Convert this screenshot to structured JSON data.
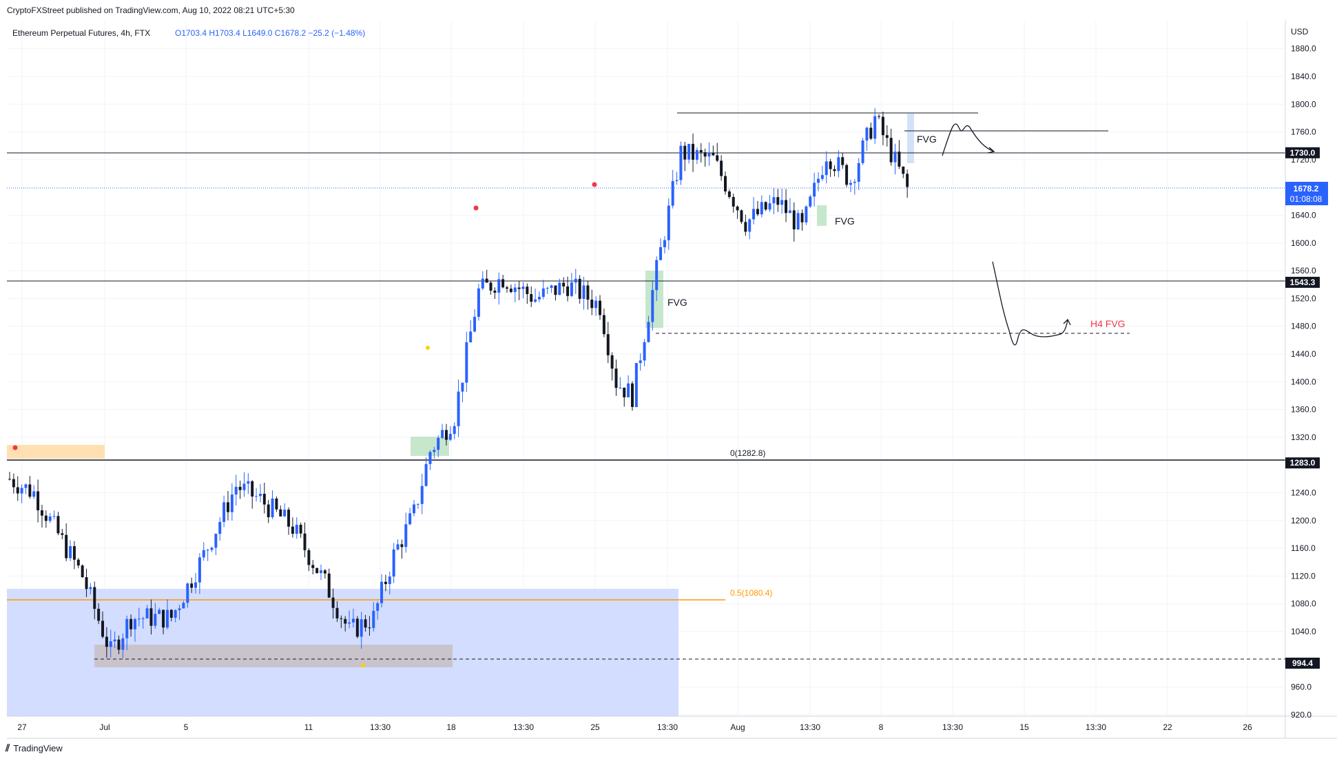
{
  "header": {
    "published": "CryptoFXStreet published on TradingView.com, Aug 10, 2022 08:21 UTC+5:30",
    "symbol": "Ethereum Perpetual Futures, 4h, FTX",
    "ohlc": "O1703.4 H1703.4 L1649.0 C1678.2 −25.2 (−1.48%)"
  },
  "footer": {
    "brand": "TradingView",
    "logo_icon": "tradingview-logo-icon"
  },
  "colors": {
    "up": "#2962ff",
    "down": "#131722",
    "zone": "#cdd9ff",
    "fvg": "#b9e1bf",
    "orange": "#ff9800",
    "red": "#f23645",
    "last": "#2962ff",
    "yellow": "#f5d10d"
  },
  "chart_data": {
    "type": "candlestick",
    "currency": "USD",
    "ylim": [
      900,
      1900
    ],
    "y_ticks": [
      "1880.0",
      "1840.0",
      "1800.0",
      "1760.0",
      "1720.0",
      "1640.0",
      "1600.0",
      "1560.0",
      "1520.0",
      "1480.0",
      "1440.0",
      "1400.0",
      "1360.0",
      "1320.0",
      "1240.0",
      "1200.0",
      "1160.0",
      "1120.0",
      "1080.0",
      "1040.0",
      "960.0",
      "920.0"
    ],
    "x_ticks": [
      "27",
      "Jul",
      "5",
      "11",
      "13:30",
      "18",
      "13:30",
      "25",
      "13:30",
      "Aug",
      "13:30",
      "8",
      "13:30",
      "15",
      "13:30",
      "22",
      "26"
    ],
    "price_labels": [
      {
        "value": 1730.0,
        "text": "1730.0"
      },
      {
        "value": 1543.3,
        "text": "1543.3"
      },
      {
        "value": 1283.0,
        "text": "1283.0"
      },
      {
        "value": 994.4,
        "text": "994.4"
      }
    ],
    "last_price": {
      "value": 1678.2,
      "text": "1678.2",
      "countdown": "01:08:08"
    },
    "annotations": {
      "fib0": {
        "value": 1282.8,
        "text": "0(1282.8)"
      },
      "fib05": {
        "value": 1080.4,
        "text": "0.5(1080.4)"
      },
      "fvg_label": "FVG",
      "h4_fvg": "H4 FVG"
    },
    "anchors": [
      {
        "i": 0,
        "p": 1260
      },
      {
        "i": 6,
        "p": 1240
      },
      {
        "i": 12,
        "p": 1180
      },
      {
        "i": 18,
        "p": 1120
      },
      {
        "i": 25,
        "p": 1010
      },
      {
        "i": 30,
        "p": 1060
      },
      {
        "i": 40,
        "p": 1060
      },
      {
        "i": 48,
        "p": 1150
      },
      {
        "i": 56,
        "p": 1250
      },
      {
        "i": 62,
        "p": 1230
      },
      {
        "i": 70,
        "p": 1190
      },
      {
        "i": 78,
        "p": 1110
      },
      {
        "i": 84,
        "p": 1040
      },
      {
        "i": 90,
        "p": 1060
      },
      {
        "i": 95,
        "p": 1150
      },
      {
        "i": 100,
        "p": 1210
      },
      {
        "i": 104,
        "p": 1300
      },
      {
        "i": 110,
        "p": 1350
      },
      {
        "i": 116,
        "p": 1530
      },
      {
        "i": 122,
        "p": 1550
      },
      {
        "i": 130,
        "p": 1520
      },
      {
        "i": 138,
        "p": 1540
      },
      {
        "i": 146,
        "p": 1510
      },
      {
        "i": 150,
        "p": 1400
      },
      {
        "i": 154,
        "p": 1380
      },
      {
        "i": 160,
        "p": 1560
      },
      {
        "i": 166,
        "p": 1730
      },
      {
        "i": 174,
        "p": 1720
      },
      {
        "i": 182,
        "p": 1630
      },
      {
        "i": 190,
        "p": 1660
      },
      {
        "i": 196,
        "p": 1620
      },
      {
        "i": 202,
        "p": 1730
      },
      {
        "i": 208,
        "p": 1690
      },
      {
        "i": 214,
        "p": 1780
      },
      {
        "i": 218,
        "p": 1730
      },
      {
        "i": 222,
        "p": 1678
      }
    ]
  }
}
